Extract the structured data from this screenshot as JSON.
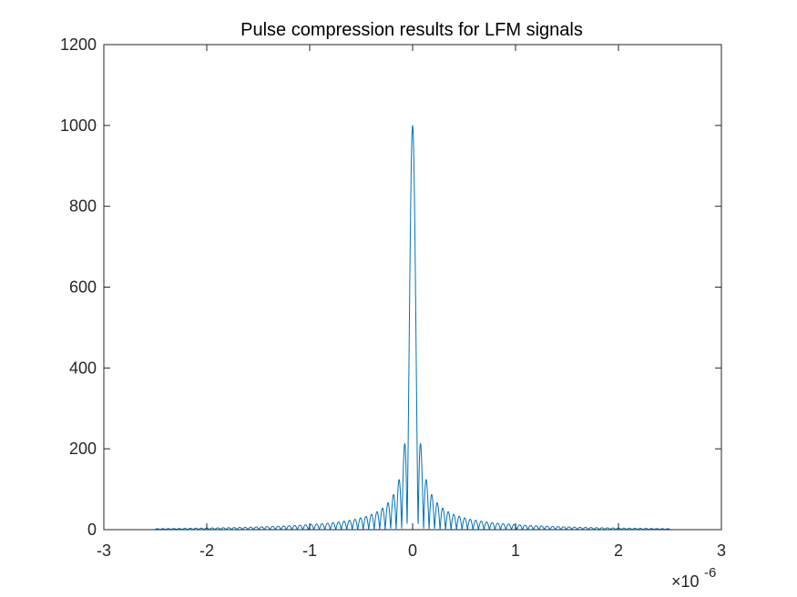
{
  "chart_data": {
    "type": "line",
    "title": "Pulse compression results for LFM signals",
    "xlabel": "",
    "ylabel": "",
    "xlim": [
      -3e-06,
      3e-06
    ],
    "ylim": [
      0,
      1200
    ],
    "x_ticks": [
      -3,
      -2,
      -1,
      0,
      1,
      2,
      3
    ],
    "x_tick_labels": [
      "-3",
      "-2",
      "-1",
      "0",
      "1",
      "2",
      "3"
    ],
    "x_exponent_label": "×10",
    "x_exponent_power": "-6",
    "y_ticks": [
      0,
      200,
      400,
      600,
      800,
      1000,
      1200
    ],
    "y_tick_labels": [
      "0",
      "200",
      "400",
      "600",
      "800",
      "1000",
      "1200"
    ],
    "grid": false,
    "series": [
      {
        "color": "#0072BD",
        "peak_x": 0,
        "peak_y": 1000,
        "first_sidelobe_x": 8e-08,
        "first_sidelobe_y": 215,
        "x_range": [
          -2.5e-06,
          2.5e-06
        ]
      }
    ]
  },
  "colors": {
    "axis": "#262626",
    "line": "#0072BD",
    "background": "#ffffff"
  }
}
